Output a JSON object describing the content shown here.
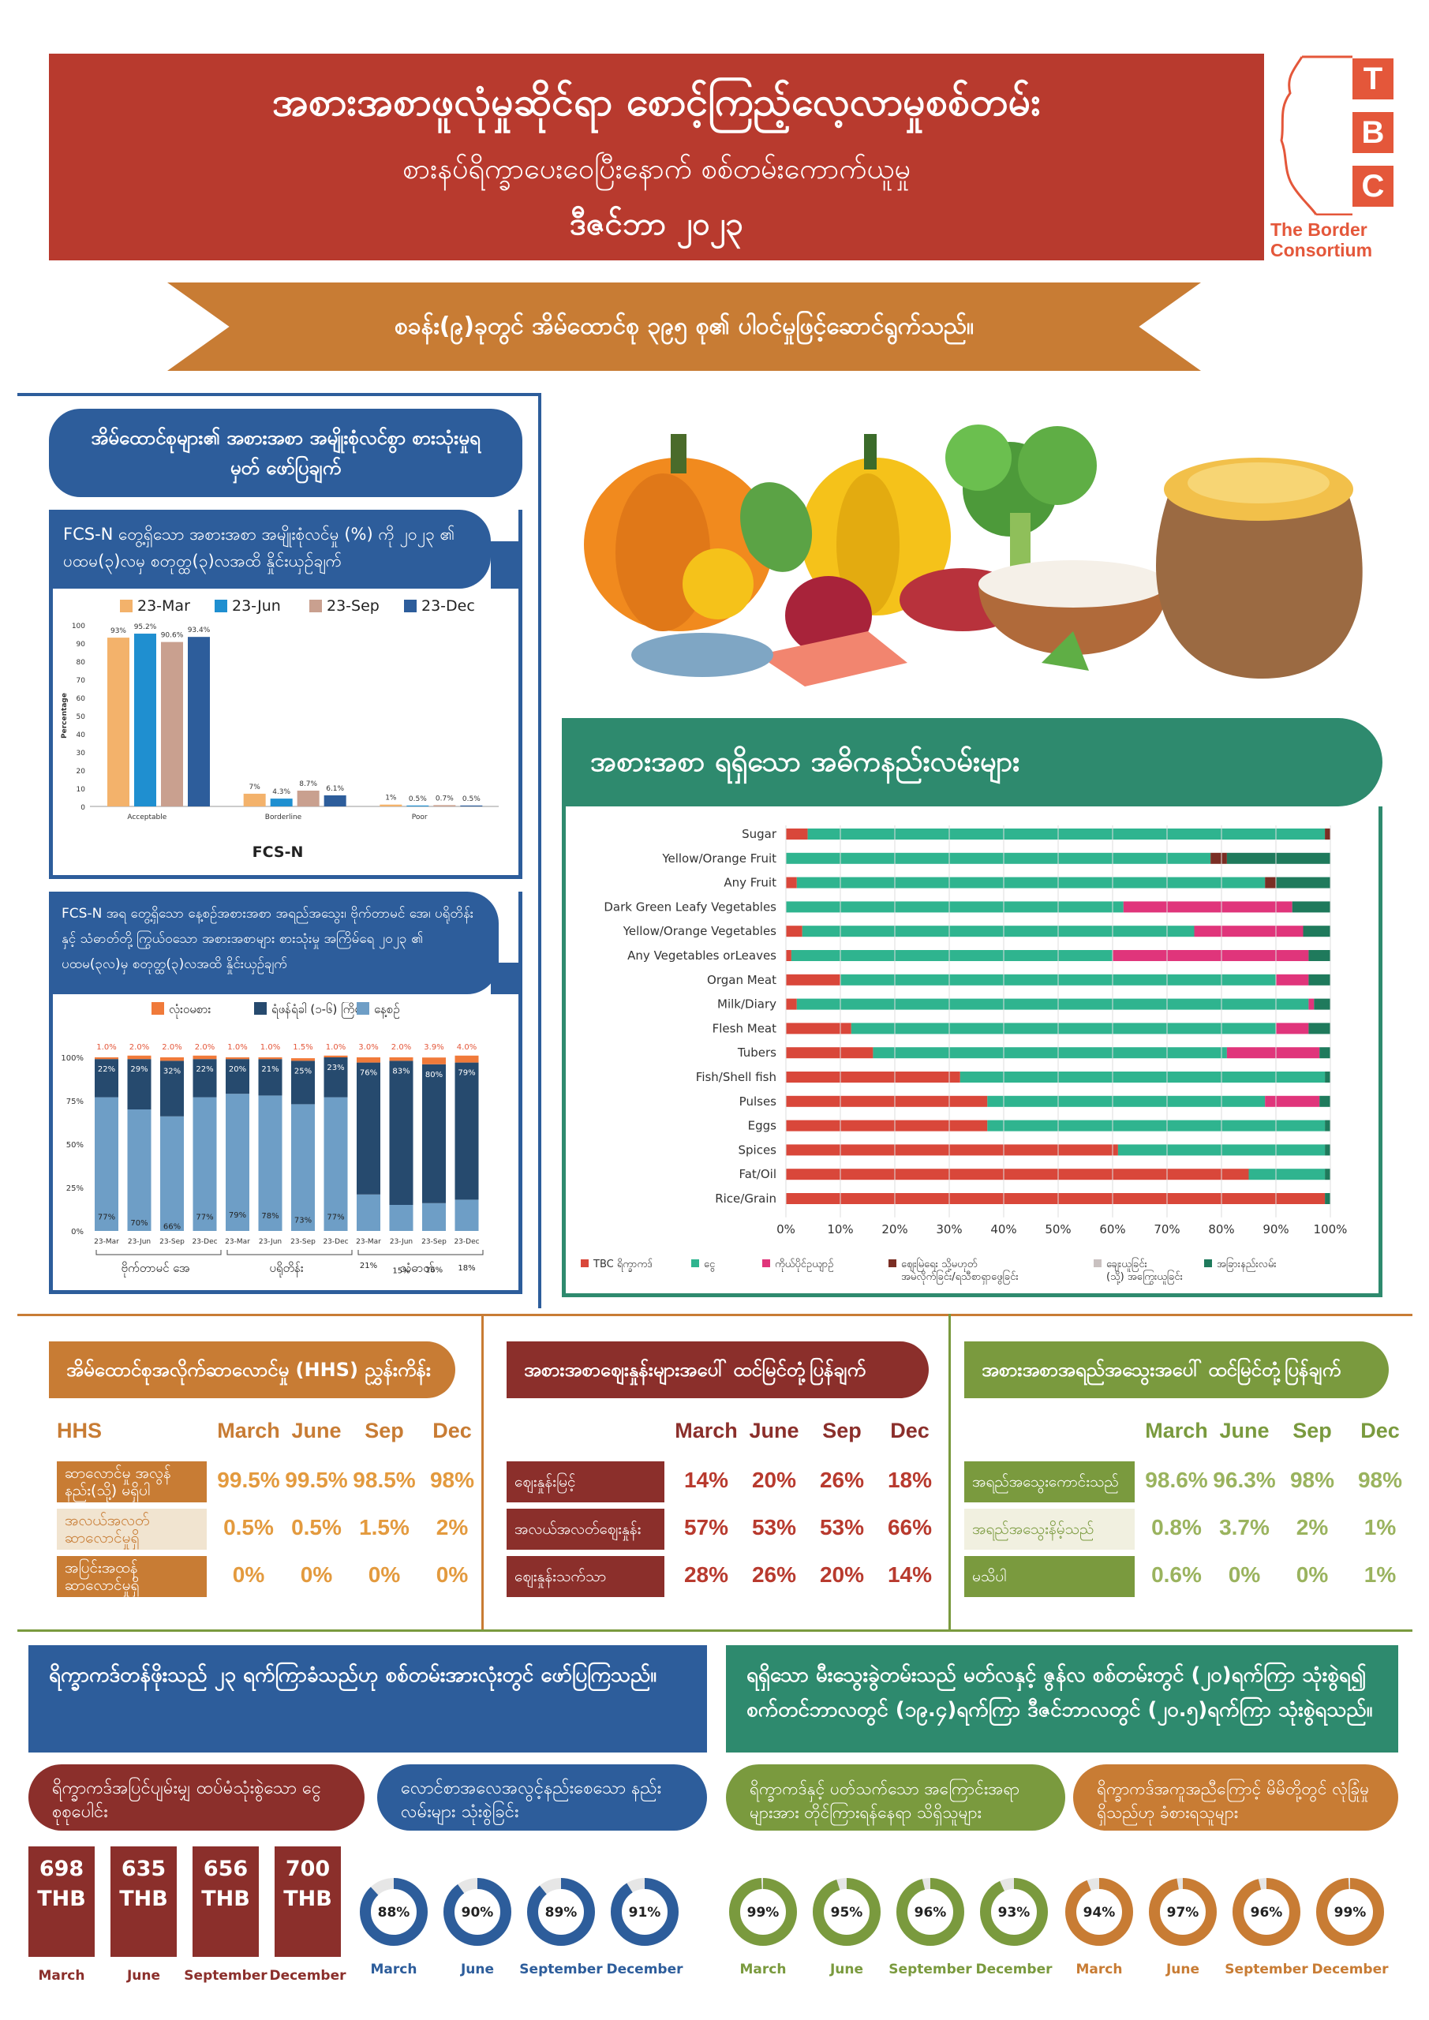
{
  "header": {
    "title": "အစားအစာဖူလုံမှုဆိုင်ရာ စောင့်ကြည့်လေ့လာမှုစစ်တမ်း",
    "subtitle": "စားနပ်ရိက္ခာပေးဝေပြီးနောက် စစ်တမ်းကောက်ယူမှု",
    "date": "ဒီဇင်ဘာ ၂၀၂၃",
    "banner": "စခန်း(၉)ခုတွင် အိမ်ထောင်စု ၃၉၅ စု၏ ပါဝင်မှုဖြင့်ဆောင်ရွက်သည်။"
  },
  "logo": {
    "letters": [
      "T",
      "B",
      "C"
    ],
    "name_line1": "The Border",
    "name_line2": "Consortium"
  },
  "fcs_panel": {
    "title": "အိမ်ထောင်စုများ၏ အစားအစာ အမျိုးစုံလင်စွာ စားသုံးမှုရမှတ် ဖော်ပြချက်",
    "subtitle": "FCS-N တွေ့ရှိသော အစားအစာ အမျိုးစုံလင်မှု (%) ကို ၂၀၂၃ ၏ ပထမ(၃)လမှ စတုတ္ထ(၃)လအထိ နှိုင်းယှဉ်ချက်"
  },
  "nutri_panel": {
    "subtitle": "FCS-N အရ တွေ့ရှိသော နေ့စဉ်အစားအစာ အရည်အသွေး၊ ဗိုက်တာမင် အေ၊ ပရိုတိန်းနှင့် သံဓာတ်တို့ ကြွယ်ဝသော အစားအစာများ စားသုံးမှု အကြိမ်ရေ ၂၀၂၃ ၏ ပထမ(၃လ)မှ စတုတ္ထ(၃)လအထိ နှိုင်းယှဉ်ချက်",
    "legend": [
      "လုံးဝမစား",
      "ရံဖန်ရံခါ (၁-၆) ကြိမ်",
      "နေ့စဉ်"
    ],
    "groups": [
      "ဗိုက်တာမင် အေ",
      "ပရိုတိန်း",
      "သံဓာတ်"
    ]
  },
  "sources_title": "အစားအစာ ရရှိသော အဓိကနည်းလမ်းများ",
  "hhs": {
    "title": "အိမ်ထောင်စုအလိုက်ဆာလောင်မှု (HHS) ညွှန်းကိန်း",
    "head": "HHS",
    "cols": [
      "March",
      "June",
      "Sep",
      "Dec"
    ],
    "rows": [
      {
        "label": "ဆာလောင်မှု အလွန်နည်း(သို့) မရှိပါ",
        "vals": [
          "99.5%",
          "99.5%",
          "98.5%",
          "98%"
        ]
      },
      {
        "label": "အလယ်အလတ် ဆာလောင်မှုရှိ",
        "vals": [
          "0.5%",
          "0.5%",
          "1.5%",
          "2%"
        ]
      },
      {
        "label": "အပြင်းအထန် ဆာလောင်မှုရှိ",
        "vals": [
          "0%",
          "0%",
          "0%",
          "0%"
        ]
      }
    ],
    "colors": {
      "c1": "#c87c34",
      "c2": "#f1e4d0",
      "c3": "#c87c34"
    }
  },
  "prices": {
    "title": "အစားအစာဈေးနှုန်းများအပေါ် ထင်မြင်တုံ့ပြန်ချက်",
    "cols": [
      "March",
      "June",
      "Sep",
      "Dec"
    ],
    "rows": [
      {
        "label": "ဈေးနှုန်းမြင့်",
        "vals": [
          "14%",
          "20%",
          "26%",
          "18%"
        ]
      },
      {
        "label": "အလယ်အလတ်ဈေးနှုန်း",
        "vals": [
          "57%",
          "53%",
          "53%",
          "66%"
        ]
      },
      {
        "label": "ဈေးနှုန်းသက်သာ",
        "vals": [
          "28%",
          "26%",
          "20%",
          "14%"
        ]
      }
    ]
  },
  "quality": {
    "title": "အစားအစာအရည်အသွေးအပေါ် ထင်မြင်တုံ့ပြန်ချက်",
    "cols": [
      "March",
      "June",
      "Sep",
      "Dec"
    ],
    "rows": [
      {
        "label": "အရည်အသွေးကောင်းသည်",
        "vals": [
          "98.6%",
          "96.3%",
          "98%",
          "98%"
        ]
      },
      {
        "label": "အရည်အသွေးနိမ့်သည်",
        "vals": [
          "0.8%",
          "3.7%",
          "2%",
          "1%"
        ]
      },
      {
        "label": "မသိပါ",
        "vals": [
          "0.6%",
          "0%",
          "0%",
          "1%"
        ]
      }
    ]
  },
  "bottom_left": {
    "title": "ရိက္ခာကဒ်တန်ဖိုးသည် ၂၃ ရက်ကြာခံသည်ဟု စစ်တမ်းအားလုံးတွင် ဖော်ပြကြသည်။",
    "pill1": "ရိက္ခာကဒ်အပြင်ပျမ်းမျှ ထပ်မံသုံးစွဲသော ငွေ စုစုပေါင်း",
    "pill2": "လောင်စာအလေအလွင့်နည်းစေသော နည်းလမ်းများ သုံးစွဲခြင်း",
    "thb": [
      {
        "amount": "698",
        "unit": "THB",
        "month": "March"
      },
      {
        "amount": "635",
        "unit": "THB",
        "month": "June"
      },
      {
        "amount": "656",
        "unit": "THB",
        "month": "September"
      },
      {
        "amount": "700",
        "unit": "THB",
        "month": "December"
      }
    ],
    "fuel": [
      {
        "pct": "88%",
        "value": 88,
        "month": "March"
      },
      {
        "pct": "90%",
        "value": 90,
        "month": "June"
      },
      {
        "pct": "89%",
        "value": 89,
        "month": "September"
      },
      {
        "pct": "91%",
        "value": 91,
        "month": "December"
      }
    ]
  },
  "bottom_right": {
    "title": "ရရှိသော မီးသွေးခွဲတမ်းသည် မတ်လနှင့် ဇွန်လ စစ်တမ်းတွင် (၂၀)ရက်ကြာ သုံးစွဲရ၍ စက်တင်ဘာလတွင် (၁၉.၄)ရက်ကြာ ဒီဇင်ဘာလတွင် (၂၀.၅)ရက်ကြာ သုံးစွဲရသည်။",
    "pill1": "ရိက္ခာကဒ်နှင့် ပတ်သက်သော အကြောင်းအရာ များအား တိုင်ကြားရန်နေရာ သိရှိသူများ",
    "pill2": "ရိက္ခာကဒ်အကူအညီကြောင့် မိမိတို့တွင် လုံခြုံမှုရှိသည်ဟု ခံစားရသူများ",
    "aware": [
      {
        "pct": "99%",
        "value": 99,
        "month": "March"
      },
      {
        "pct": "95%",
        "value": 95,
        "month": "June"
      },
      {
        "pct": "96%",
        "value": 96,
        "month": "September"
      },
      {
        "pct": "93%",
        "value": 93,
        "month": "December"
      }
    ],
    "safe": [
      {
        "pct": "94%",
        "value": 94,
        "month": "March"
      },
      {
        "pct": "97%",
        "value": 97,
        "month": "June"
      },
      {
        "pct": "96%",
        "value": 96,
        "month": "September"
      },
      {
        "pct": "99%",
        "value": 99,
        "month": "December"
      }
    ]
  },
  "colors": {
    "red": "#b83a2e",
    "blue": "#2d5d9b",
    "orange": "#c87c34",
    "green": "#2e8a6e",
    "olive": "#7a9a3e",
    "maroon": "#8b2f2b"
  },
  "chart_data": [
    {
      "type": "bar",
      "title": "FCS-N",
      "ylabel": "Percentage",
      "ylim": [
        0,
        100
      ],
      "categories": [
        "Acceptable",
        "Borderline",
        "Poor"
      ],
      "series": [
        {
          "name": "23-Mar",
          "color": "#f3b26b",
          "values": [
            93,
            7,
            1
          ],
          "labels": [
            "93%",
            "7%",
            "1%"
          ]
        },
        {
          "name": "23-Jun",
          "color": "#1f8fd0",
          "values": [
            95.2,
            4.3,
            0.5
          ],
          "labels": [
            "95.2%",
            "4.3%",
            "0.5%"
          ]
        },
        {
          "name": "23-Sep",
          "color": "#c9a08f",
          "values": [
            90.6,
            8.7,
            0.7
          ],
          "labels": [
            "90.6%",
            "8.7%",
            "0.7%"
          ]
        },
        {
          "name": "23-Dec",
          "color": "#2d5d9b",
          "values": [
            93.4,
            6.1,
            0.5
          ],
          "labels": [
            "93.4%",
            "6.1%",
            "0.5%"
          ]
        }
      ]
    },
    {
      "type": "bar",
      "stacked": true,
      "categories": [
        "23-Mar",
        "23-Jun",
        "23-Sep",
        "23-Dec",
        "23-Mar",
        "23-Jun",
        "23-Sep",
        "23-Dec",
        "23-Mar",
        "23-Jun",
        "23-Sep",
        "23-Dec"
      ],
      "ylim": [
        0,
        100
      ],
      "yticks": [
        "0%",
        "25%",
        "50%",
        "75%",
        "100%"
      ],
      "series": [
        {
          "name": "နေ့စဉ်",
          "color": "#6e9ec6",
          "values": [
            77,
            70,
            66,
            77,
            79,
            78,
            73,
            77,
            21,
            15,
            16,
            18
          ]
        },
        {
          "name": "ရံဖန်ရံခါ (၁-၆) ကြိမ်",
          "color": "#264a6e",
          "values": [
            22,
            29,
            32,
            22,
            20,
            21,
            25,
            23,
            76,
            83,
            80,
            79
          ]
        },
        {
          "name": "လုံးဝမစား",
          "color": "#f07a3a",
          "values": [
            1,
            2,
            2,
            2,
            1,
            1,
            1.5,
            1,
            3,
            2,
            3.9,
            4
          ]
        }
      ],
      "top_labels": [
        "1.0%",
        "2.0%",
        "2.0%",
        "2.0%",
        "1.0%",
        "1.0%",
        "1.5%",
        "1.0%",
        "3.0%",
        "2.0%",
        "3.9%",
        "4.0%"
      ]
    },
    {
      "type": "bar",
      "stacked": true,
      "horizontal": true,
      "categories": [
        "Sugar",
        "Yellow/Orange Fruit",
        "Any Fruit",
        "Dark Green Leafy Vegetables",
        "Yellow/Orange Vegetables",
        "Any Vegetables orLeaves",
        "Organ Meat",
        "Milk/Diary",
        "Flesh Meat",
        "Tubers",
        "Fish/Shell fish",
        "Pulses",
        "Eggs",
        "Spices",
        "Fat/Oil",
        "Rice/Grain"
      ],
      "xlim": [
        0,
        100
      ],
      "xticks": [
        "0%",
        "10%",
        "20%",
        "30%",
        "40%",
        "50%",
        "60%",
        "70%",
        "80%",
        "90%",
        "100%"
      ],
      "series": [
        {
          "name": "TBC ရိက္ခာကဒ်",
          "color": "#d9473a",
          "values": [
            4,
            0,
            2,
            0,
            3,
            1,
            10,
            2,
            12,
            16,
            32,
            37,
            37,
            61,
            85,
            99
          ]
        },
        {
          "name": "ငွေ",
          "color": "#2fb48f",
          "values": [
            95,
            78,
            86,
            62,
            72,
            59,
            80,
            94,
            78,
            65,
            67,
            51,
            62,
            38,
            14,
            0
          ]
        },
        {
          "name": "ကိုယ်ပိုင်ဥယျာဉ်",
          "color": "#e0357b",
          "values": [
            0,
            0,
            0,
            31,
            20,
            36,
            6,
            1,
            6,
            17,
            0,
            10,
            0,
            0,
            0,
            0
          ]
        },
        {
          "name": "ဈေးမြဲရေး သို့မဟုတ် အမဲလိုက်ခြင်း/ရသီစာရှာဖွေခြင်း",
          "color": "#7a2e24",
          "values": [
            1,
            3,
            2,
            0,
            0,
            0,
            0,
            0,
            0,
            0,
            0,
            0,
            0,
            0,
            0,
            0
          ]
        },
        {
          "name": "ချေးယူခြင်း (သို့) အကြွေးယူခြင်း",
          "color": "#c9c1c0",
          "values": [
            0,
            0,
            0,
            0,
            0,
            0,
            0,
            0,
            0,
            0,
            0,
            0,
            0,
            0,
            0,
            0
          ]
        },
        {
          "name": "အခြားနည်းလမ်း",
          "color": "#1f7a5c",
          "values": [
            0,
            19,
            10,
            7,
            5,
            4,
            4,
            3,
            4,
            2,
            1,
            2,
            1,
            1,
            1,
            1
          ]
        }
      ]
    }
  ]
}
